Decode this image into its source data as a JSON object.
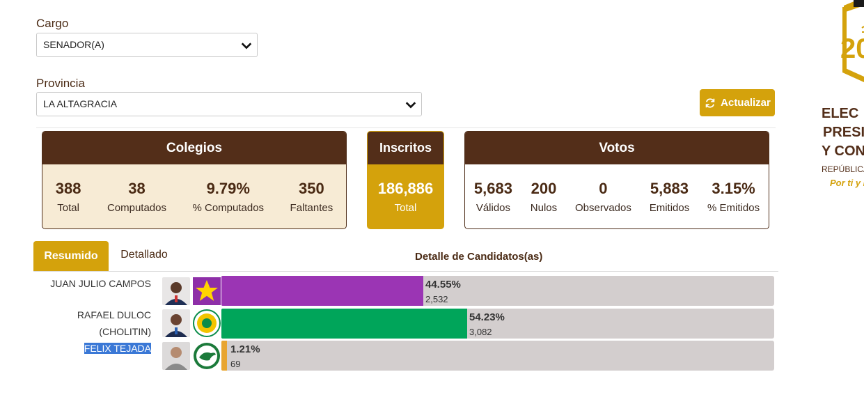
{
  "filters": {
    "cargo_label": "Cargo",
    "cargo_value": "SENADOR(A)",
    "provincia_label": "Provincia",
    "provincia_value": "LA ALTAGRACIA"
  },
  "actions": {
    "refresh_label": "Actualizar"
  },
  "colegios": {
    "title": "Colegios",
    "stats": [
      {
        "value": "388",
        "label": "Total"
      },
      {
        "value": "38",
        "label": "Computados"
      },
      {
        "value": "9.79%",
        "label": "% Computados"
      },
      {
        "value": "350",
        "label": "Faltantes"
      }
    ]
  },
  "inscritos": {
    "title": "Inscritos",
    "value": "186,886",
    "label": "Total"
  },
  "votos": {
    "title": "Votos",
    "stats": [
      {
        "value": "5,683",
        "label": "Válidos"
      },
      {
        "value": "200",
        "label": "Nulos"
      },
      {
        "value": "0",
        "label": "Observados"
      },
      {
        "value": "5,883",
        "label": "Emitidos"
      },
      {
        "value": "3.15%",
        "label": "% Emitidos"
      }
    ]
  },
  "tabs": {
    "resumido": "Resumido",
    "detallado": "Detallado"
  },
  "detail_title": "Detalle de Candidatos(as)",
  "candidates": [
    {
      "name_line1": "JUAN JULIO CAMPOS",
      "name_line2": "",
      "percent": "44.55%",
      "votes": "2,532",
      "share": 0.4455,
      "color": "#9b35b4",
      "party_icon": "star-icon"
    },
    {
      "name_line1": "RAFAEL DULOC",
      "name_line2": "(CHOLITIN)",
      "percent": "54.23%",
      "votes": "3,082",
      "share": 0.5423,
      "color": "#00a55a",
      "party_icon": "sunflower-icon"
    },
    {
      "name_line1": "FELIX TEJADA",
      "name_line2": "",
      "percent": "1.21%",
      "votes": "69",
      "share": 0.0121,
      "color": "#e8a531",
      "party_icon": "dove-icon"
    }
  ],
  "logo": {
    "year_fragment": "20",
    "line1": "ELEC",
    "line2": "PRESID",
    "line3": "Y CONG",
    "sub": "REPÚBLICA",
    "slogan": "Por ti y lo"
  }
}
